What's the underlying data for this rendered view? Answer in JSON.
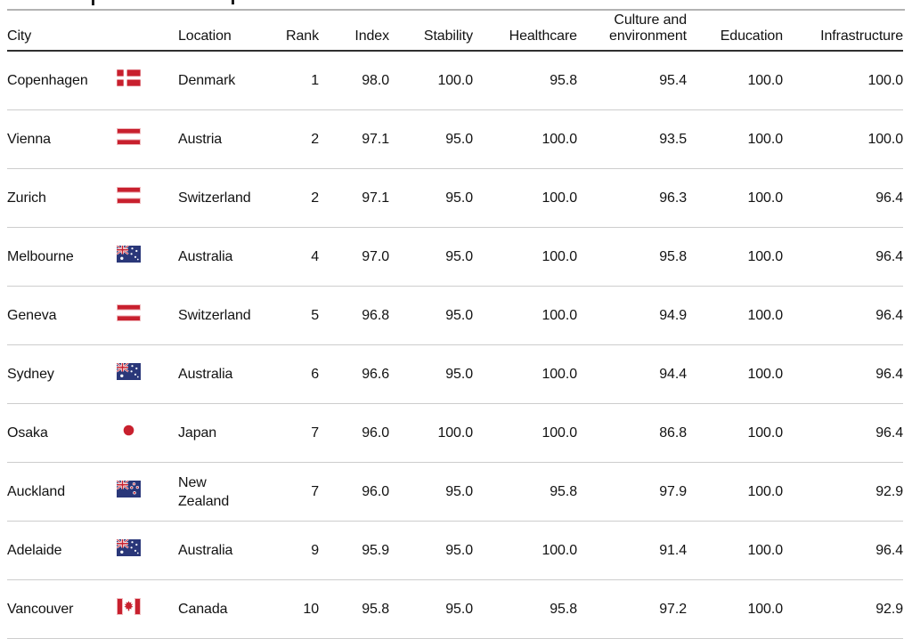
{
  "chart_data": {
    "type": "table",
    "title": "",
    "columns": [
      "City",
      "",
      "Location",
      "Rank",
      "Index",
      "Stability",
      "Healthcare",
      "Culture and environment",
      "Education",
      "Infrastructure"
    ],
    "rows": [
      {
        "city": "Copenhagen",
        "flag": "denmark",
        "location": "Denmark",
        "rank": "1",
        "index": "98.0",
        "stability": "100.0",
        "healthcare": "95.8",
        "culture": "95.4",
        "education": "100.0",
        "infrastructure": "100.0"
      },
      {
        "city": "Vienna",
        "flag": "austria",
        "location": "Austria",
        "rank": "2",
        "index": "97.1",
        "stability": "95.0",
        "healthcare": "100.0",
        "culture": "93.5",
        "education": "100.0",
        "infrastructure": "100.0"
      },
      {
        "city": "Zurich",
        "flag": "switzerland",
        "location": "Switzerland",
        "rank": "2",
        "index": "97.1",
        "stability": "95.0",
        "healthcare": "100.0",
        "culture": "96.3",
        "education": "100.0",
        "infrastructure": "96.4"
      },
      {
        "city": "Melbourne",
        "flag": "australia",
        "location": "Australia",
        "rank": "4",
        "index": "97.0",
        "stability": "95.0",
        "healthcare": "100.0",
        "culture": "95.8",
        "education": "100.0",
        "infrastructure": "96.4"
      },
      {
        "city": "Geneva",
        "flag": "switzerland",
        "location": "Switzerland",
        "rank": "5",
        "index": "96.8",
        "stability": "95.0",
        "healthcare": "100.0",
        "culture": "94.9",
        "education": "100.0",
        "infrastructure": "96.4"
      },
      {
        "city": "Sydney",
        "flag": "australia",
        "location": "Australia",
        "rank": "6",
        "index": "96.6",
        "stability": "95.0",
        "healthcare": "100.0",
        "culture": "94.4",
        "education": "100.0",
        "infrastructure": "96.4"
      },
      {
        "city": "Osaka",
        "flag": "japan",
        "location": "Japan",
        "rank": "7",
        "index": "96.0",
        "stability": "100.0",
        "healthcare": "100.0",
        "culture": "86.8",
        "education": "100.0",
        "infrastructure": "96.4"
      },
      {
        "city": "Auckland",
        "flag": "new-zealand",
        "location": "New Zealand",
        "rank": "7",
        "index": "96.0",
        "stability": "95.0",
        "healthcare": "95.8",
        "culture": "97.9",
        "education": "100.0",
        "infrastructure": "92.9"
      },
      {
        "city": "Adelaide",
        "flag": "australia",
        "location": "Australia",
        "rank": "9",
        "index": "95.9",
        "stability": "95.0",
        "healthcare": "100.0",
        "culture": "91.4",
        "education": "100.0",
        "infrastructure": "96.4"
      },
      {
        "city": "Vancouver",
        "flag": "canada",
        "location": "Canada",
        "rank": "10",
        "index": "95.8",
        "stability": "95.0",
        "healthcare": "95.8",
        "culture": "97.2",
        "education": "100.0",
        "infrastructure": "92.9"
      }
    ]
  },
  "colors": {
    "text": "#121212",
    "header_rule": "#2f2f2f",
    "row_line": "#cdcdcd",
    "top_rule": "#b3b3b3",
    "flag_red": "#c8202e",
    "flag_navy": "#2a3779"
  }
}
